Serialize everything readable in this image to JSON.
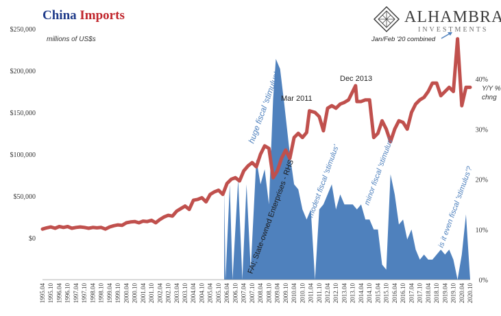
{
  "title": {
    "part1": "China",
    "part2": "Imports"
  },
  "logo": {
    "brand": "ALHAMBRA",
    "sub": "INVESTMENTS"
  },
  "colors": {
    "imports_line": "#c0504d",
    "fai_area": "#4f81bd",
    "annotation": "#4f81bd",
    "title_blue": "#1f3b8a",
    "title_red": "#c0252b"
  },
  "chart_data": {
    "type": "line",
    "left_axis": {
      "label": "millions of US$s",
      "range": [
        -50000,
        250000
      ],
      "ticks": [
        0,
        50000,
        100000,
        150000,
        200000,
        250000
      ],
      "tick_labels": [
        "$0",
        "$50,000",
        "$100,000",
        "$150,000",
        "$200,000",
        "$250,000"
      ]
    },
    "right_axis": {
      "label_line1": "Y/Y %",
      "label_line2": "chng",
      "range": [
        0,
        50
      ],
      "ticks": [
        0,
        10,
        20,
        30,
        40
      ],
      "tick_labels": [
        "0%",
        "10%",
        "20%",
        "30%",
        "40%"
      ]
    },
    "x_axis": {
      "start": "1995.04",
      "end": "2020.10",
      "tick_labels": [
        "1995.04",
        "1995.10",
        "1996.04",
        "1996.10",
        "1997.04",
        "1997.10",
        "1998.04",
        "1998.10",
        "1999.04",
        "1999.10",
        "2000.04",
        "2000.10",
        "2001.04",
        "2001.10",
        "2002.04",
        "2002.10",
        "2003.04",
        "2003.10",
        "2004.04",
        "2004.10",
        "2005.04",
        "2005.10",
        "2006.04",
        "2006.10",
        "2007.04",
        "2007.10",
        "2008.04",
        "2008.10",
        "2009.04",
        "2009.10",
        "2010.04",
        "2010.10",
        "2011.04",
        "2011.10",
        "2012.04",
        "2012.10",
        "2013.04",
        "2013.10",
        "2014.04",
        "2014.10",
        "2015.04",
        "2015.10",
        "2016.04",
        "2016.10",
        "2017.04",
        "2017.10",
        "2018.04",
        "2018.10",
        "2019.04",
        "2019.10",
        "2020.04",
        "2020.10"
      ]
    },
    "series": [
      {
        "axis": "left",
        "points": [
          [
            "1995-04",
            10500
          ],
          [
            "1995-07",
            12000
          ],
          [
            "1995-10",
            13000
          ],
          [
            "1996-01",
            11500
          ],
          [
            "1996-04",
            13500
          ],
          [
            "1996-07",
            12500
          ],
          [
            "1996-10",
            13500
          ],
          [
            "1997-01",
            11500
          ],
          [
            "1997-04",
            12500
          ],
          [
            "1997-07",
            13000
          ],
          [
            "1997-10",
            12500
          ],
          [
            "1998-01",
            11500
          ],
          [
            "1998-04",
            12500
          ],
          [
            "1998-07",
            12000
          ],
          [
            "1998-10",
            12500
          ],
          [
            "1999-01",
            10500
          ],
          [
            "1999-04",
            13000
          ],
          [
            "1999-07",
            14500
          ],
          [
            "1999-10",
            15500
          ],
          [
            "2000-01",
            15000
          ],
          [
            "2000-04",
            18000
          ],
          [
            "2000-07",
            19000
          ],
          [
            "2000-10",
            19500
          ],
          [
            "2001-01",
            18000
          ],
          [
            "2001-04",
            20000
          ],
          [
            "2001-07",
            19500
          ],
          [
            "2001-10",
            21000
          ],
          [
            "2002-01",
            18000
          ],
          [
            "2002-04",
            22000
          ],
          [
            "2002-07",
            25000
          ],
          [
            "2002-10",
            27000
          ],
          [
            "2003-01",
            26000
          ],
          [
            "2003-04",
            32000
          ],
          [
            "2003-07",
            35000
          ],
          [
            "2003-10",
            38000
          ],
          [
            "2004-01",
            34000
          ],
          [
            "2004-04",
            45000
          ],
          [
            "2004-07",
            46000
          ],
          [
            "2004-10",
            48000
          ],
          [
            "2005-01",
            43000
          ],
          [
            "2005-04",
            52000
          ],
          [
            "2005-07",
            55000
          ],
          [
            "2005-10",
            57000
          ],
          [
            "2006-01",
            52000
          ],
          [
            "2006-04",
            65000
          ],
          [
            "2006-07",
            70000
          ],
          [
            "2006-10",
            72000
          ],
          [
            "2007-01",
            68000
          ],
          [
            "2007-04",
            80000
          ],
          [
            "2007-07",
            86000
          ],
          [
            "2007-10",
            90000
          ],
          [
            "2008-01",
            85000
          ],
          [
            "2008-04",
            100000
          ],
          [
            "2008-07",
            110000
          ],
          [
            "2008-10",
            107000
          ],
          [
            "2009-01",
            72000
          ],
          [
            "2009-04",
            80000
          ],
          [
            "2009-07",
            95000
          ],
          [
            "2009-10",
            105000
          ],
          [
            "2010-01",
            95000
          ],
          [
            "2010-04",
            120000
          ],
          [
            "2010-07",
            125000
          ],
          [
            "2010-10",
            120000
          ],
          [
            "2011-01",
            126000
          ],
          [
            "2011-03",
            152000
          ],
          [
            "2011-07",
            150000
          ],
          [
            "2011-10",
            145000
          ],
          [
            "2012-01",
            128000
          ],
          [
            "2012-04",
            155000
          ],
          [
            "2012-07",
            158000
          ],
          [
            "2012-10",
            155000
          ],
          [
            "2013-01",
            160000
          ],
          [
            "2013-04",
            162000
          ],
          [
            "2013-07",
            165000
          ],
          [
            "2013-12",
            182000
          ],
          [
            "2014-01",
            163000
          ],
          [
            "2014-04",
            163000
          ],
          [
            "2014-07",
            165000
          ],
          [
            "2014-10",
            165000
          ],
          [
            "2015-01",
            120000
          ],
          [
            "2015-04",
            125000
          ],
          [
            "2015-07",
            140000
          ],
          [
            "2015-10",
            130000
          ],
          [
            "2016-01",
            115000
          ],
          [
            "2016-04",
            130000
          ],
          [
            "2016-07",
            140000
          ],
          [
            "2016-10",
            138000
          ],
          [
            "2017-01",
            130000
          ],
          [
            "2017-04",
            150000
          ],
          [
            "2017-07",
            160000
          ],
          [
            "2017-10",
            165000
          ],
          [
            "2018-01",
            168000
          ],
          [
            "2018-04",
            175000
          ],
          [
            "2018-07",
            185000
          ],
          [
            "2018-10",
            185000
          ],
          [
            "2019-01",
            170000
          ],
          [
            "2019-04",
            175000
          ],
          [
            "2019-07",
            180000
          ],
          [
            "2019-10",
            175000
          ],
          [
            "2020-01",
            238000
          ],
          [
            "2020-04",
            158000
          ],
          [
            "2020-07",
            180000
          ],
          [
            "2020-10",
            180000
          ]
        ]
      },
      {
        "name": "FAI; State-owned Enterprises - RHS",
        "axis": "right",
        "type": "area",
        "points": [
          [
            "2006-02",
            18
          ],
          [
            "2006-03",
            0
          ],
          [
            "2006-06",
            19
          ],
          [
            "2006-08",
            0
          ],
          [
            "2006-12",
            20
          ],
          [
            "2007-03",
            0
          ],
          [
            "2007-06",
            19
          ],
          [
            "2007-09",
            2
          ],
          [
            "2008-01",
            24
          ],
          [
            "2008-04",
            19
          ],
          [
            "2008-07",
            22
          ],
          [
            "2008-10",
            15
          ],
          [
            "2009-01",
            36
          ],
          [
            "2009-03",
            44
          ],
          [
            "2009-06",
            42
          ],
          [
            "2009-09",
            35
          ],
          [
            "2010-01",
            25
          ],
          [
            "2010-04",
            19
          ],
          [
            "2010-07",
            18
          ],
          [
            "2010-10",
            14
          ],
          [
            "2011-01",
            12
          ],
          [
            "2011-04",
            14
          ],
          [
            "2011-07",
            0
          ],
          [
            "2011-10",
            14
          ],
          [
            "2012-01",
            15
          ],
          [
            "2012-04",
            17
          ],
          [
            "2012-07",
            19
          ],
          [
            "2012-10",
            14
          ],
          [
            "2013-01",
            17
          ],
          [
            "2013-04",
            15
          ],
          [
            "2013-07",
            15
          ],
          [
            "2013-10",
            15
          ],
          [
            "2014-01",
            14
          ],
          [
            "2014-04",
            15
          ],
          [
            "2014-07",
            12
          ],
          [
            "2014-10",
            12
          ],
          [
            "2015-01",
            10
          ],
          [
            "2015-04",
            10
          ],
          [
            "2015-07",
            3
          ],
          [
            "2015-10",
            2
          ],
          [
            "2016-01",
            21
          ],
          [
            "2016-04",
            17
          ],
          [
            "2016-07",
            11
          ],
          [
            "2016-10",
            12
          ],
          [
            "2017-01",
            8
          ],
          [
            "2017-04",
            10
          ],
          [
            "2017-07",
            6
          ],
          [
            "2017-10",
            4
          ],
          [
            "2018-01",
            5
          ],
          [
            "2018-04",
            4
          ],
          [
            "2018-07",
            4
          ],
          [
            "2018-10",
            5
          ],
          [
            "2019-01",
            6
          ],
          [
            "2019-04",
            5
          ],
          [
            "2019-07",
            6
          ],
          [
            "2019-10",
            4
          ],
          [
            "2020-01",
            0
          ],
          [
            "2020-04",
            5
          ],
          [
            "2020-07",
            13
          ],
          [
            "2020-10",
            0
          ]
        ]
      }
    ],
    "annotations": [
      {
        "text": "Mar 2011",
        "color": "dark"
      },
      {
        "text": "Dec 2013",
        "color": "dark"
      },
      {
        "text": "Jan/Feb '20 combined",
        "color": "dark"
      },
      {
        "text": "huge fiscal 'stimulus'",
        "color": "blue"
      },
      {
        "text": "modest fiscal 'stimulus'",
        "color": "blue"
      },
      {
        "text": "minor fiscal 'stimulus'",
        "color": "blue"
      },
      {
        "text": "is it even fiscal 'stimulus'?",
        "color": "blue"
      },
      {
        "text": "FAI; State-owned Enterprises - RHS",
        "color": "dark"
      }
    ]
  }
}
